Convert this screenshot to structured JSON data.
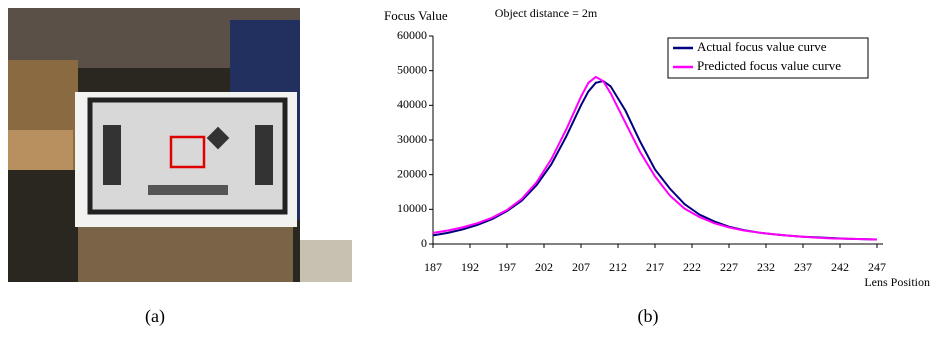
{
  "chart_data": {
    "type": "line",
    "title": "Object distance = 2m",
    "ylabel": "Focus Value",
    "xlabel": "Lens Position",
    "x": [
      187,
      189,
      191,
      193,
      195,
      197,
      199,
      201,
      203,
      205,
      207,
      208,
      209,
      210,
      211,
      213,
      215,
      217,
      219,
      221,
      223,
      225,
      227,
      229,
      231,
      233,
      235,
      237,
      239,
      241,
      243,
      245,
      247
    ],
    "series": [
      {
        "name": "Actual focus value curve",
        "color": "#000080",
        "values": [
          2500,
          3200,
          4200,
          5500,
          7200,
          9500,
          12500,
          17000,
          23000,
          31000,
          40000,
          44000,
          46500,
          47000,
          45500,
          38500,
          29500,
          21500,
          16000,
          11500,
          8500,
          6500,
          5000,
          4000,
          3300,
          2800,
          2400,
          2100,
          1900,
          1700,
          1500,
          1400,
          1300
        ]
      },
      {
        "name": "Predicted focus value curve",
        "color": "#ff00ff",
        "values": [
          3200,
          3900,
          4800,
          6000,
          7600,
          9800,
          13000,
          17800,
          24500,
          33000,
          42500,
          46500,
          48200,
          47000,
          43500,
          35000,
          26500,
          19500,
          14000,
          10200,
          7800,
          6000,
          4800,
          3900,
          3300,
          2800,
          2400,
          2100,
          1800,
          1600,
          1500,
          1400,
          1300
        ]
      }
    ],
    "xlim": [
      187,
      247
    ],
    "xticks": [
      187,
      192,
      197,
      202,
      207,
      212,
      217,
      222,
      227,
      232,
      237,
      242,
      247
    ],
    "ylim": [
      0,
      60000
    ],
    "yticks": [
      0,
      10000,
      20000,
      30000,
      40000,
      50000,
      60000
    ],
    "legend": "top-right",
    "grid": false
  },
  "captions": [
    "(a)",
    "(b)"
  ]
}
